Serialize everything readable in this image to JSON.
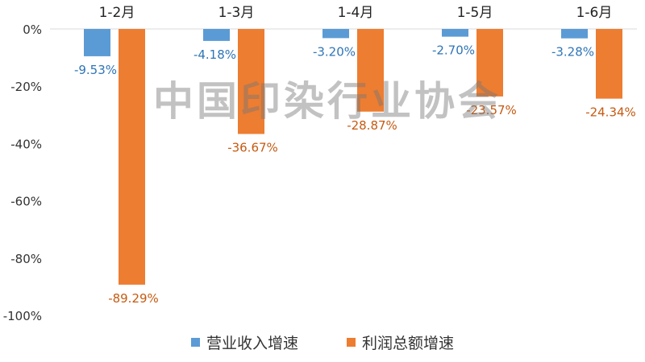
{
  "chart_data": {
    "type": "bar",
    "categories": [
      "1-2月",
      "1-3月",
      "1-4月",
      "1-5月",
      "1-6月"
    ],
    "series": [
      {
        "name": "营业收入增速",
        "values": [
          -9.53,
          -4.18,
          -3.2,
          -2.7,
          -3.28
        ],
        "labels": [
          "-9.53%",
          "-4.18%",
          "-3.20%",
          "-2.70%",
          "-3.28%"
        ],
        "color": "#5b9bd5",
        "label_color": "#2e75b6"
      },
      {
        "name": "利润总额增速",
        "values": [
          -89.29,
          -36.67,
          -28.87,
          -23.57,
          -24.34
        ],
        "labels": [
          "-89.29%",
          "-36.67%",
          "-28.87%",
          "-23.57%",
          "-24.34%"
        ],
        "color": "#ed7d31",
        "label_color": "#c55a11"
      }
    ],
    "yticks": [
      "0%",
      "-20%",
      "-40%",
      "-60%",
      "-80%",
      "-100%"
    ],
    "ytick_values": [
      0,
      -20,
      -40,
      -60,
      -80,
      -100
    ],
    "ylim": [
      -100,
      0
    ],
    "legend_position": "bottom",
    "grid": false
  },
  "watermark": "中国印染行业协会"
}
